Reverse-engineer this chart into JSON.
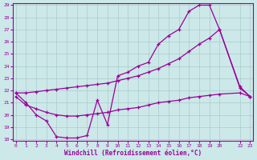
{
  "xlabel": "Windchill (Refroidissement éolien,°C)",
  "background_color": "#cce8e8",
  "grid_color": "#aacccc",
  "line_color": "#990099",
  "xlim": [
    0,
    23
  ],
  "ylim": [
    18,
    29
  ],
  "yticks": [
    18,
    19,
    20,
    21,
    22,
    23,
    24,
    25,
    26,
    27,
    28,
    29
  ],
  "xticks": [
    0,
    1,
    2,
    3,
    4,
    5,
    6,
    7,
    8,
    9,
    10,
    11,
    12,
    13,
    14,
    15,
    16,
    17,
    18,
    19,
    20,
    22,
    23
  ],
  "line1_x": [
    0,
    1,
    2,
    3,
    4,
    5,
    6,
    7,
    8,
    9,
    10,
    11,
    12,
    13,
    14,
    15,
    16,
    17,
    18,
    19,
    20,
    22,
    23
  ],
  "line1_y": [
    21.8,
    21.0,
    20.0,
    19.5,
    18.2,
    18.1,
    18.1,
    18.3,
    21.2,
    19.2,
    23.2,
    23.5,
    24.0,
    24.3,
    25.8,
    26.5,
    27.0,
    28.5,
    29.0,
    29.0,
    27.0,
    22.2,
    21.5
  ],
  "line2_x": [
    0,
    1,
    2,
    3,
    4,
    5,
    6,
    7,
    8,
    9,
    10,
    11,
    12,
    13,
    14,
    15,
    16,
    17,
    18,
    19,
    20,
    22,
    23
  ],
  "line2_y": [
    21.8,
    21.8,
    21.9,
    22.0,
    22.1,
    22.2,
    22.3,
    22.4,
    22.5,
    22.6,
    22.8,
    23.0,
    23.2,
    23.5,
    23.8,
    24.2,
    24.6,
    25.2,
    25.8,
    26.3,
    27.0,
    22.3,
    21.5
  ],
  "line3_x": [
    0,
    1,
    2,
    3,
    4,
    5,
    6,
    7,
    8,
    9,
    10,
    11,
    12,
    13,
    14,
    15,
    16,
    17,
    18,
    19,
    20,
    22,
    23
  ],
  "line3_y": [
    21.5,
    20.8,
    20.5,
    20.2,
    20.0,
    19.9,
    19.9,
    20.0,
    20.1,
    20.2,
    20.4,
    20.5,
    20.6,
    20.8,
    21.0,
    21.1,
    21.2,
    21.4,
    21.5,
    21.6,
    21.7,
    21.8,
    21.5
  ]
}
